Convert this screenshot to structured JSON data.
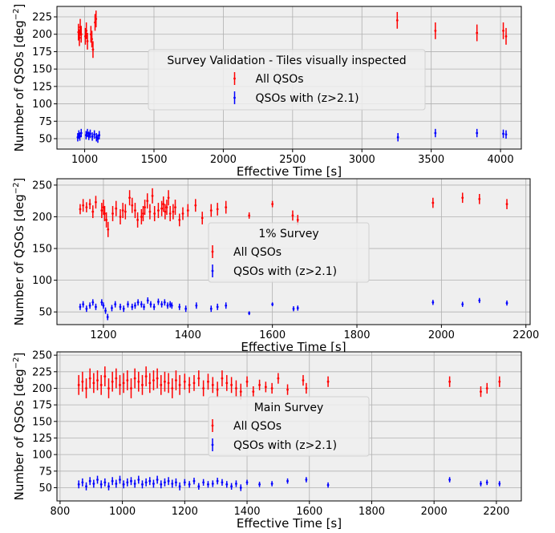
{
  "chart_data": [
    {
      "type": "errorbar-scatter",
      "xlabel": "Effective Time [s]",
      "ylabel": "Number of QSOs [deg",
      "ylabel_sup": "−2",
      "ylabel_end": "]",
      "xlim": [
        800,
        4150
      ],
      "ylim": [
        35,
        240
      ],
      "xticks": [
        1000,
        1500,
        2000,
        2500,
        3000,
        3500,
        4000
      ],
      "yticks": [
        50,
        75,
        100,
        125,
        150,
        175,
        200,
        225
      ],
      "grid": true,
      "legend": {
        "title": "Survey Validation - Tiles visually inspected",
        "placement": "center"
      },
      "series": [
        {
          "name": "All QSOs",
          "color": "#ff0000",
          "x": [
            955,
            962,
            968,
            975,
            1005,
            1012,
            1020,
            1045,
            1052,
            1060,
            1075,
            1082,
            3255,
            3530,
            3830,
            4020,
            4040
          ],
          "y": [
            203,
            195,
            210,
            200,
            197,
            205,
            190,
            200,
            193,
            178,
            217,
            222,
            220,
            205,
            202,
            205,
            197
          ],
          "err": [
            12,
            12,
            12,
            12,
            12,
            12,
            12,
            12,
            12,
            12,
            12,
            12,
            12,
            12,
            12,
            12,
            12
          ]
        },
        {
          "name": "QSOs with (z>2.1)",
          "color": "#0000ff",
          "x": [
            950,
            958,
            965,
            975,
            1010,
            1020,
            1030,
            1040,
            1055,
            1070,
            1085,
            1095,
            1105,
            3260,
            3530,
            3830,
            4020,
            4040
          ],
          "y": [
            52,
            56,
            53,
            58,
            55,
            58,
            54,
            57,
            53,
            56,
            52,
            50,
            55,
            52,
            58,
            58,
            57,
            56
          ],
          "err": [
            6,
            6,
            6,
            6,
            6,
            6,
            6,
            6,
            6,
            6,
            6,
            6,
            6,
            6,
            6,
            6,
            6,
            6
          ]
        }
      ]
    },
    {
      "type": "errorbar-scatter",
      "xlabel": "Effective Time [s]",
      "ylabel": "Number of QSOs [deg",
      "ylabel_sup": "−2",
      "ylabel_end": "]",
      "xlim": [
        1090,
        2210
      ],
      "ylim": [
        30,
        260
      ],
      "xticks": [
        1200,
        1400,
        1600,
        1800,
        2000,
        2200
      ],
      "yticks": [
        50,
        100,
        150,
        200,
        250
      ],
      "grid": true,
      "legend": {
        "title": "1% Survey",
        "placement": "center"
      },
      "series": [
        {
          "name": "All QSOs",
          "color": "#ff0000",
          "x": [
            1145,
            1152,
            1160,
            1168,
            1175,
            1182,
            1196,
            1200,
            1203,
            1207,
            1211,
            1222,
            1230,
            1240,
            1246,
            1252,
            1262,
            1268,
            1275,
            1281,
            1290,
            1294,
            1298,
            1304,
            1310,
            1316,
            1321,
            1330,
            1338,
            1342,
            1346,
            1350,
            1354,
            1358,
            1365,
            1370,
            1380,
            1388,
            1400,
            1418,
            1434,
            1455,
            1470,
            1490,
            1545,
            1600,
            1648,
            1660,
            1980,
            2050,
            2090,
            2155
          ],
          "y": [
            212,
            218,
            215,
            220,
            208,
            223,
            210,
            215,
            205,
            195,
            180,
            205,
            213,
            200,
            210,
            208,
            230,
            218,
            210,
            195,
            200,
            205,
            215,
            225,
            208,
            233,
            205,
            210,
            213,
            220,
            208,
            215,
            230,
            205,
            208,
            215,
            195,
            205,
            210,
            218,
            198,
            210,
            212,
            215,
            202,
            220,
            202,
            195,
            222,
            230,
            228,
            220
          ],
          "err": [
            8,
            10,
            8,
            8,
            10,
            10,
            12,
            12,
            12,
            12,
            12,
            12,
            12,
            12,
            12,
            12,
            12,
            12,
            12,
            12,
            12,
            12,
            12,
            12,
            12,
            12,
            12,
            12,
            12,
            12,
            12,
            12,
            12,
            12,
            12,
            12,
            10,
            10,
            10,
            10,
            10,
            10,
            10,
            10,
            5,
            5,
            8,
            8,
            8,
            8,
            8,
            8
          ]
        },
        {
          "name": "QSOs with (z>2.1)",
          "color": "#0000ff",
          "x": [
            1145,
            1152,
            1160,
            1168,
            1175,
            1182,
            1196,
            1200,
            1205,
            1210,
            1220,
            1228,
            1240,
            1248,
            1258,
            1268,
            1275,
            1282,
            1290,
            1296,
            1305,
            1312,
            1320,
            1330,
            1338,
            1345,
            1352,
            1358,
            1362,
            1380,
            1395,
            1420,
            1455,
            1470,
            1490,
            1545,
            1600,
            1650,
            1660,
            1980,
            2050,
            2090,
            2155
          ],
          "y": [
            58,
            62,
            55,
            60,
            65,
            58,
            65,
            60,
            52,
            42,
            56,
            62,
            58,
            55,
            62,
            58,
            60,
            65,
            62,
            58,
            68,
            62,
            58,
            66,
            62,
            65,
            60,
            62,
            60,
            58,
            55,
            60,
            55,
            58,
            60,
            48,
            62,
            55,
            56,
            65,
            62,
            68,
            64
          ],
          "err": [
            5,
            5,
            5,
            5,
            5,
            5,
            5,
            5,
            5,
            5,
            5,
            5,
            5,
            5,
            5,
            5,
            5,
            5,
            5,
            5,
            5,
            5,
            5,
            5,
            5,
            5,
            5,
            5,
            5,
            5,
            5,
            5,
            5,
            5,
            5,
            3,
            3,
            4,
            4,
            4,
            4,
            4,
            4
          ]
        }
      ]
    },
    {
      "type": "errorbar-scatter",
      "xlabel": "Effective Time [s]",
      "ylabel": "Number of QSOs [deg",
      "ylabel_sup": "−2",
      "ylabel_end": "]",
      "xlim": [
        790,
        2280
      ],
      "ylim": [
        30,
        255
      ],
      "xticks": [
        800,
        1000,
        1200,
        1400,
        1600,
        1800,
        2000,
        2200
      ],
      "yticks": [
        50,
        75,
        100,
        125,
        150,
        175,
        200,
        225,
        250
      ],
      "grid": true,
      "legend": {
        "title": "Main Survey",
        "placement": "center"
      },
      "series": [
        {
          "name": "All QSOs",
          "color": "#ff0000",
          "x": [
            860,
            872,
            884,
            896,
            908,
            920,
            932,
            944,
            956,
            968,
            980,
            992,
            1004,
            1016,
            1028,
            1040,
            1052,
            1064,
            1076,
            1088,
            1100,
            1112,
            1124,
            1136,
            1148,
            1160,
            1172,
            1184,
            1200,
            1215,
            1230,
            1245,
            1260,
            1275,
            1290,
            1305,
            1320,
            1335,
            1350,
            1365,
            1380,
            1400,
            1420,
            1440,
            1460,
            1480,
            1500,
            1530,
            1580,
            1590,
            1660,
            2050,
            2150,
            2170,
            2210
          ],
          "y": [
            205,
            210,
            200,
            215,
            208,
            212,
            205,
            218,
            200,
            210,
            215,
            205,
            208,
            212,
            200,
            215,
            210,
            205,
            218,
            208,
            212,
            215,
            205,
            210,
            208,
            200,
            212,
            205,
            210,
            205,
            208,
            215,
            200,
            210,
            205,
            198,
            215,
            208,
            205,
            200,
            195,
            210,
            195,
            205,
            202,
            200,
            215,
            198,
            212,
            200,
            210,
            210,
            195,
            200,
            210
          ],
          "err": [
            15,
            15,
            15,
            15,
            15,
            15,
            15,
            15,
            15,
            15,
            15,
            15,
            15,
            15,
            15,
            15,
            15,
            15,
            15,
            15,
            15,
            15,
            15,
            15,
            15,
            15,
            15,
            15,
            12,
            12,
            12,
            12,
            12,
            12,
            12,
            12,
            12,
            12,
            12,
            12,
            12,
            8,
            8,
            8,
            8,
            8,
            8,
            8,
            8,
            8,
            8,
            8,
            8,
            8,
            8
          ]
        },
        {
          "name": "QSOs with (z>2.1)",
          "color": "#0000ff",
          "x": [
            860,
            872,
            884,
            896,
            908,
            920,
            932,
            944,
            956,
            968,
            980,
            992,
            1004,
            1016,
            1028,
            1040,
            1052,
            1064,
            1076,
            1088,
            1100,
            1112,
            1124,
            1136,
            1148,
            1160,
            1172,
            1184,
            1200,
            1215,
            1230,
            1245,
            1260,
            1275,
            1290,
            1305,
            1320,
            1335,
            1350,
            1365,
            1380,
            1400,
            1440,
            1480,
            1530,
            1590,
            1660,
            2050,
            2150,
            2170,
            2210
          ],
          "y": [
            55,
            58,
            52,
            60,
            56,
            62,
            55,
            58,
            52,
            60,
            56,
            62,
            55,
            58,
            60,
            56,
            62,
            55,
            58,
            60,
            56,
            62,
            55,
            58,
            60,
            56,
            58,
            52,
            58,
            55,
            60,
            52,
            58,
            55,
            56,
            60,
            58,
            55,
            52,
            56,
            50,
            58,
            55,
            56,
            60,
            62,
            54,
            62,
            56,
            58,
            56
          ],
          "err": [
            6,
            6,
            6,
            6,
            6,
            6,
            6,
            6,
            6,
            6,
            6,
            6,
            6,
            6,
            6,
            6,
            6,
            6,
            6,
            6,
            6,
            6,
            6,
            6,
            6,
            6,
            6,
            6,
            5,
            5,
            5,
            5,
            5,
            5,
            5,
            5,
            5,
            5,
            5,
            5,
            5,
            4,
            4,
            4,
            4,
            4,
            4,
            4,
            4,
            4,
            4
          ]
        }
      ]
    }
  ]
}
